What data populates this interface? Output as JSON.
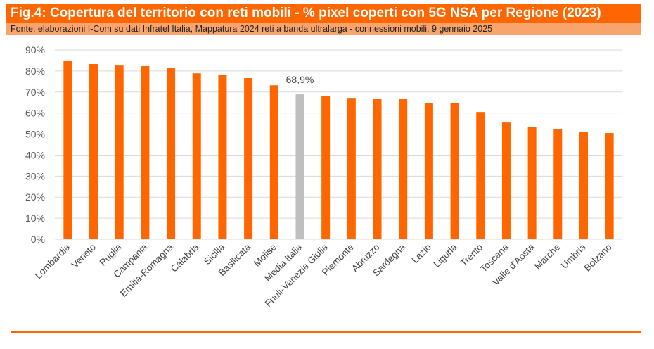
{
  "header": {
    "title": "Fig.4:  Copertura del territorio con reti mobili - % pixel coperti con 5G NSA per Regione (2023)",
    "source": "Fonte: elaborazioni I-Com su dati Infratel Italia, Mappatura 2024 reti a banda ultralarga - connessioni mobili, 9 gennaio 2025"
  },
  "colors": {
    "bar": "#FF6600",
    "highlight": "#BFBFBF",
    "header": "#FF6600",
    "subheader": "#F9A46C"
  },
  "chart_data": {
    "type": "bar",
    "title": "",
    "xlabel": "",
    "ylabel": "",
    "ylim": [
      0,
      90
    ],
    "yticks": [
      "0%",
      "10%",
      "20%",
      "30%",
      "40%",
      "50%",
      "60%",
      "70%",
      "80%",
      "90%"
    ],
    "grid": true,
    "categories": [
      "Lombardia",
      "Veneto",
      "Puglia",
      "Campania",
      "Emilia-Romagna",
      "Calabria",
      "Sicilia",
      "Basilicata",
      "Molise",
      "Media Italia",
      "Friuli-Venezia Giulia",
      "Piemonte",
      "Abruzzo",
      "Sardegna",
      "Lazio",
      "Liguria",
      "Trento",
      "Toscana",
      "Valle d'Aosta",
      "Marche",
      "Umbria",
      "Bolzano"
    ],
    "values": [
      85.0,
      83.3,
      82.6,
      82.3,
      81.3,
      78.9,
      78.3,
      76.6,
      73.2,
      68.9,
      68.2,
      67.2,
      66.9,
      66.6,
      64.9,
      64.9,
      60.5,
      55.5,
      53.5,
      52.5,
      51.2,
      50.5
    ],
    "highlight_category": "Media Italia",
    "data_labels": {
      "Media Italia": "68,9%"
    }
  }
}
